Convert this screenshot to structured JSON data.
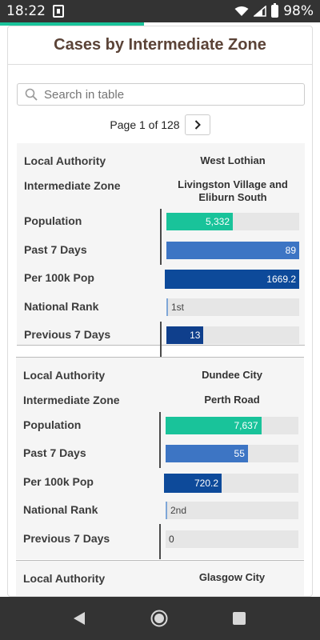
{
  "status_bar": {
    "time": "18:22",
    "battery": "98%"
  },
  "page": {
    "title": "Cases by Intermediate Zone",
    "progress": 0.45
  },
  "search": {
    "placeholder": "Search in table",
    "value": ""
  },
  "pager": {
    "text": "Page 1 of 128"
  },
  "labels": {
    "local_authority": "Local Authority",
    "intermediate_zone": "Intermediate Zone",
    "population": "Population",
    "past_7_days": "Past 7 Days",
    "per_100k_pop": "Per 100k Pop",
    "national_rank": "National Rank",
    "previous_7_days": "Previous 7 Days"
  },
  "colors": {
    "population": "#19c39a",
    "past_7_days": "#3d75c4",
    "per_100k_pop": "#0d4a9a",
    "previous_7_days": "#0f3f8c"
  },
  "records": [
    {
      "local_authority": "West Lothian",
      "intermediate_zone": "Livingston Village and Eliburn South",
      "population": "5,332",
      "population_fraction": 0.5,
      "past_7_days": "89",
      "past_7_days_fraction": 1.0,
      "per_100k_pop": "1669.2",
      "per_100k_fraction": 1.0,
      "national_rank": "1st",
      "previous_7_days": "13",
      "previous_7_days_fraction": 0.28
    },
    {
      "local_authority": "Dundee City",
      "intermediate_zone": "Perth Road",
      "population": "7,637",
      "population_fraction": 0.72,
      "past_7_days": "55",
      "past_7_days_fraction": 0.62,
      "per_100k_pop": "720.2",
      "per_100k_fraction": 0.43,
      "national_rank": "2nd",
      "previous_7_days": "0",
      "previous_7_days_fraction": 0.0
    },
    {
      "local_authority": "Glasgow City"
    }
  ]
}
